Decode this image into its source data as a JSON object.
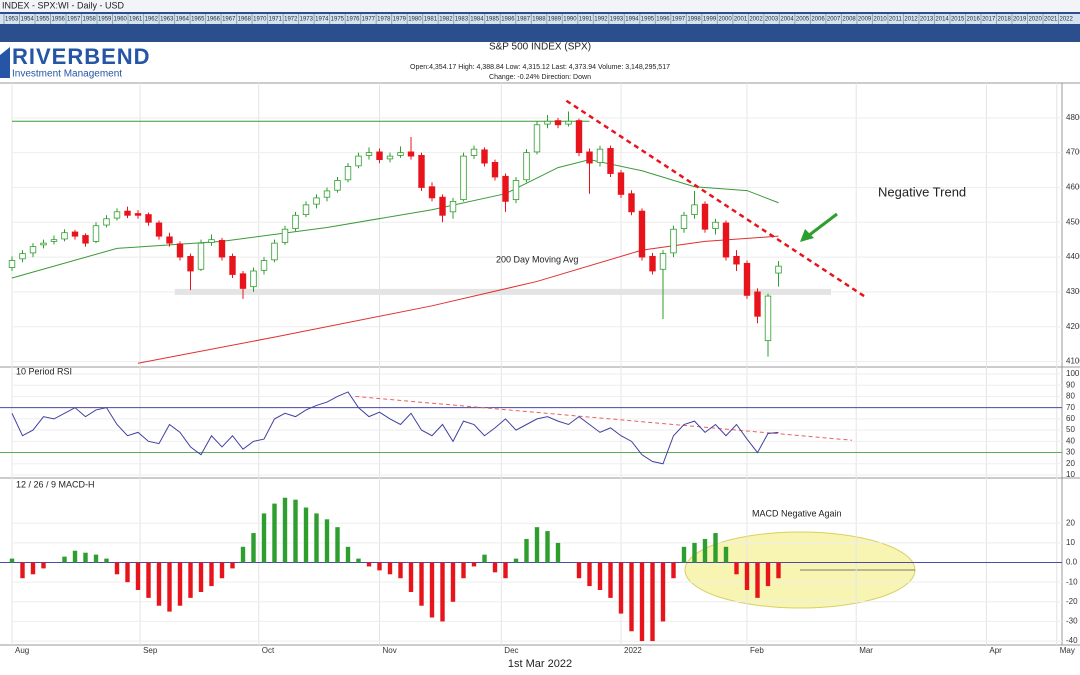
{
  "header": {
    "symbol": "INDEX - SPX:WI - Daily - USD",
    "years": [
      1953,
      1954,
      1955,
      1956,
      1957,
      1958,
      1959,
      1960,
      1961,
      1962,
      1963,
      1964,
      1965,
      1966,
      1967,
      1968,
      1970,
      1971,
      1972,
      1973,
      1974,
      1975,
      1976,
      1977,
      1978,
      1979,
      1980,
      1981,
      1982,
      1983,
      1984,
      1985,
      1986,
      1987,
      1988,
      1989,
      1990,
      1991,
      1992,
      1993,
      1994,
      1995,
      1996,
      1997,
      1998,
      1999,
      2000,
      2001,
      2002,
      2003,
      2004,
      2005,
      2006,
      2007,
      2008,
      2009,
      2010,
      2011,
      2012,
      2013,
      2014,
      2015,
      2016,
      2017,
      2018,
      2019,
      2020,
      2021,
      2022
    ],
    "logo": "RIVERBEND",
    "logo_sub": "Investment Management"
  },
  "footer": "1st Mar 2022",
  "chart_data": [
    {
      "type": "candlestick",
      "title": "S&P 500 INDEX (SPX)",
      "info": [
        "Open:4,354.17   High: 4,388.84   Low: 4,315.12   Last: 4,373.94   Volume: 3,148,295,517",
        "Change: -0.24%   Direction: Down"
      ],
      "up_color": "#2e9e2e",
      "down_color": "#e8141c",
      "xlim": [
        0,
        100
      ],
      "ylim": [
        4090,
        4900
      ],
      "yticks": [
        4100,
        4200,
        4300,
        4400,
        4500,
        4600,
        4700,
        4800
      ],
      "candles": [
        [
          4370,
          4402,
          4360,
          4390
        ],
        [
          4395,
          4420,
          4385,
          4410
        ],
        [
          4412,
          4440,
          4400,
          4430
        ],
        [
          4435,
          4450,
          4425,
          4440
        ],
        [
          4445,
          4462,
          4436,
          4450
        ],
        [
          4452,
          4480,
          4445,
          4470
        ],
        [
          4472,
          4478,
          4450,
          4460
        ],
        [
          4462,
          4468,
          4430,
          4440
        ],
        [
          4445,
          4500,
          4440,
          4490
        ],
        [
          4492,
          4520,
          4485,
          4510
        ],
        [
          4512,
          4540,
          4505,
          4530
        ],
        [
          4532,
          4545,
          4512,
          4520
        ],
        [
          4525,
          4535,
          4510,
          4520
        ],
        [
          4522,
          4528,
          4490,
          4500
        ],
        [
          4498,
          4505,
          4450,
          4460
        ],
        [
          4458,
          4470,
          4430,
          4440
        ],
        [
          4438,
          4445,
          4390,
          4400
        ],
        [
          4402,
          4410,
          4305,
          4360
        ],
        [
          4365,
          4450,
          4360,
          4440
        ],
        [
          4442,
          4465,
          4432,
          4450
        ],
        [
          4448,
          4455,
          4390,
          4400
        ],
        [
          4402,
          4410,
          4340,
          4350
        ],
        [
          4352,
          4360,
          4280,
          4310
        ],
        [
          4315,
          4370,
          4300,
          4360
        ],
        [
          4362,
          4400,
          4350,
          4390
        ],
        [
          4392,
          4450,
          4385,
          4440
        ],
        [
          4442,
          4490,
          4435,
          4480
        ],
        [
          4482,
          4530,
          4475,
          4520
        ],
        [
          4522,
          4560,
          4515,
          4550
        ],
        [
          4552,
          4580,
          4540,
          4570
        ],
        [
          4572,
          4600,
          4560,
          4590
        ],
        [
          4592,
          4630,
          4585,
          4620
        ],
        [
          4622,
          4670,
          4615,
          4660
        ],
        [
          4662,
          4700,
          4655,
          4690
        ],
        [
          4692,
          4715,
          4680,
          4700
        ],
        [
          4702,
          4712,
          4670,
          4680
        ],
        [
          4682,
          4700,
          4672,
          4690
        ],
        [
          4692,
          4718,
          4685,
          4700
        ],
        [
          4702,
          4745,
          4680,
          4690
        ],
        [
          4692,
          4700,
          4590,
          4600
        ],
        [
          4602,
          4615,
          4560,
          4570
        ],
        [
          4572,
          4580,
          4500,
          4520
        ],
        [
          4530,
          4570,
          4510,
          4560
        ],
        [
          4565,
          4700,
          4560,
          4690
        ],
        [
          4692,
          4720,
          4682,
          4710
        ],
        [
          4708,
          4715,
          4660,
          4670
        ],
        [
          4672,
          4680,
          4620,
          4630
        ],
        [
          4632,
          4640,
          4530,
          4560
        ],
        [
          4565,
          4630,
          4555,
          4620
        ],
        [
          4622,
          4710,
          4615,
          4700
        ],
        [
          4702,
          4790,
          4695,
          4780
        ],
        [
          4782,
          4808,
          4770,
          4790
        ],
        [
          4792,
          4800,
          4770,
          4780
        ],
        [
          4782,
          4818,
          4775,
          4790
        ],
        [
          4792,
          4798,
          4690,
          4700
        ],
        [
          4702,
          4712,
          4582,
          4670
        ],
        [
          4672,
          4720,
          4660,
          4710
        ],
        [
          4712,
          4720,
          4630,
          4640
        ],
        [
          4642,
          4650,
          4570,
          4580
        ],
        [
          4582,
          4592,
          4520,
          4530
        ],
        [
          4532,
          4540,
          4390,
          4400
        ],
        [
          4402,
          4412,
          4350,
          4360
        ],
        [
          4365,
          4420,
          4222,
          4410
        ],
        [
          4412,
          4490,
          4400,
          4480
        ],
        [
          4482,
          4530,
          4470,
          4520
        ],
        [
          4522,
          4590,
          4510,
          4550
        ],
        [
          4552,
          4560,
          4470,
          4480
        ],
        [
          4482,
          4510,
          4465,
          4500
        ],
        [
          4498,
          4505,
          4390,
          4400
        ],
        [
          4402,
          4420,
          4360,
          4380
        ],
        [
          4382,
          4390,
          4280,
          4290
        ],
        [
          4300,
          4310,
          4210,
          4230
        ],
        [
          4160,
          4295,
          4114,
          4288
        ],
        [
          4354.17,
          4388.84,
          4315.12,
          4373.94
        ]
      ],
      "ma50": {
        "color": "#3a9a3a",
        "x": [
          0,
          10,
          20,
          30,
          40,
          47,
          52,
          55,
          60,
          65,
          70,
          73
        ],
        "values": [
          4340,
          4425,
          4445,
          4485,
          4536,
          4582,
          4657,
          4680,
          4648,
          4602,
          4591,
          4556
        ]
      },
      "ma200": {
        "label": "200 Day Moving Avg",
        "color": "#e03030",
        "x": [
          12,
          25,
          40,
          50,
          60,
          66,
          73
        ],
        "values": [
          4095,
          4170,
          4260,
          4330,
          4420,
          4445,
          4460
        ]
      },
      "resistance": {
        "value": 4790,
        "x": [
          0,
          55
        ],
        "color": "#3a9a3a"
      },
      "support": {
        "value": 4300,
        "x": [
          15.5,
          78
        ],
        "color": "#e4e4e4"
      },
      "trend_line": {
        "x": [
          52.8,
          81.4
        ],
        "values": [
          4849,
          4283
        ],
        "color": "#e8141c"
      },
      "annotation": "Negative Trend"
    },
    {
      "type": "line",
      "title": "10 Period RSI",
      "color": "#4040a0",
      "xlim": [
        0,
        100
      ],
      "ylim": [
        10,
        100
      ],
      "yticks": [
        10,
        20,
        30,
        40,
        50,
        60,
        70,
        80,
        90,
        100
      ],
      "values": [
        65,
        45,
        50,
        62,
        60,
        65,
        70,
        62,
        68,
        70,
        55,
        45,
        48,
        40,
        38,
        55,
        48,
        35,
        28,
        45,
        35,
        45,
        33,
        40,
        42,
        60,
        65,
        62,
        68,
        72,
        75,
        80,
        84,
        70,
        62,
        66,
        60,
        55,
        65,
        50,
        45,
        55,
        40,
        58,
        55,
        45,
        52,
        60,
        50,
        55,
        60,
        62,
        58,
        55,
        62,
        55,
        48,
        52,
        45,
        40,
        28,
        22,
        20,
        45,
        55,
        58,
        48,
        55,
        45,
        55,
        42,
        30,
        47,
        48
      ],
      "levels": [
        {
          "value": 70,
          "color": "#4a4aa8"
        },
        {
          "value": 30,
          "color": "#5aaa5a"
        }
      ],
      "trend_line": {
        "x": [
          32.7,
          80
        ],
        "values": [
          80,
          41
        ],
        "color": "#e86060"
      }
    },
    {
      "type": "bar",
      "title": "12 / 26 / 9 MACD-H",
      "pos_color": "#2e9e2e",
      "neg_color": "#e8141c",
      "xlim": [
        0,
        100
      ],
      "ylim": [
        -42,
        41
      ],
      "yticks": [
        20,
        10,
        {
          "value": 0,
          "label": "0.0"
        },
        -10,
        -20,
        -30,
        -40
      ],
      "values": [
        2,
        -8,
        -6,
        -3,
        0,
        3,
        6,
        5,
        4,
        2,
        -6,
        -10,
        -14,
        -18,
        -22,
        -25,
        -22,
        -18,
        -15,
        -12,
        -8,
        -3,
        8,
        15,
        25,
        30,
        33,
        32,
        28,
        25,
        22,
        18,
        8,
        2,
        -2,
        -4,
        -6,
        -8,
        -15,
        -22,
        -28,
        -30,
        -20,
        -8,
        -2,
        4,
        -5,
        -8,
        2,
        12,
        18,
        16,
        10,
        0,
        -8,
        -12,
        -14,
        -18,
        -26,
        -35,
        -40,
        -40,
        -30,
        -8,
        8,
        10,
        12,
        15,
        8,
        -6,
        -14,
        -18,
        -12,
        -8
      ],
      "xticks": [
        {
          "value": 0,
          "label": "Aug"
        },
        {
          "value": 12.2,
          "label": "Sep"
        },
        {
          "value": 23.5,
          "label": "Oct"
        },
        {
          "value": 35,
          "label": "Nov"
        },
        {
          "value": 46.6,
          "label": "Dec"
        },
        {
          "value": 58,
          "label": "2022"
        },
        {
          "value": 70,
          "label": "Feb"
        },
        {
          "value": 80.4,
          "label": "Mar"
        },
        {
          "value": 92.8,
          "label": "Apr"
        },
        {
          "value": 99.5,
          "label": "May"
        }
      ],
      "annotation": "MACD Negative Again"
    }
  ]
}
